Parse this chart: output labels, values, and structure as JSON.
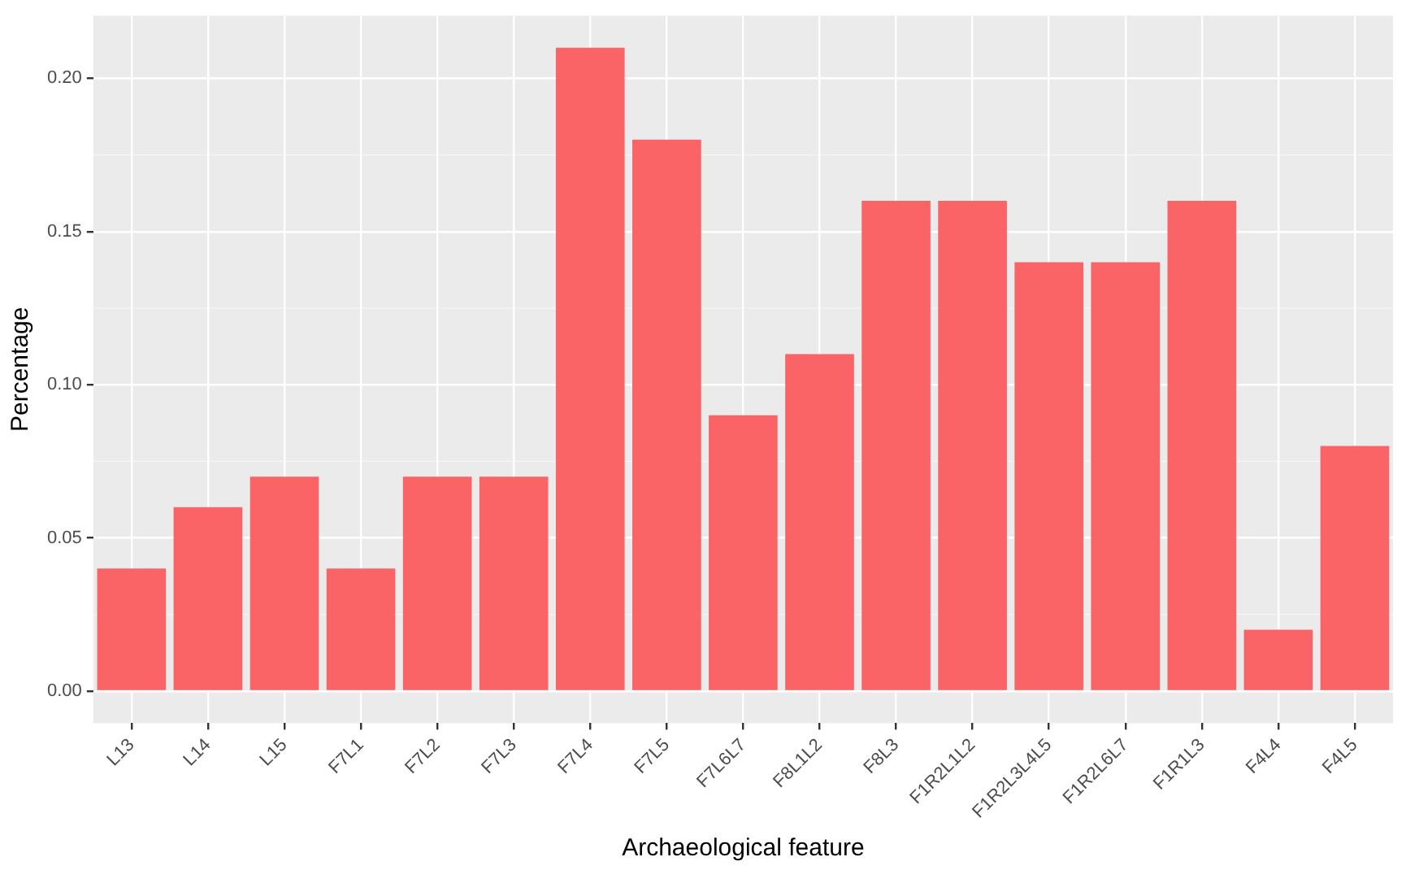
{
  "chart_data": {
    "type": "bar",
    "xlabel": "Archaeological feature",
    "ylabel": "Percentage",
    "categories": [
      "L13",
      "L14",
      "L15",
      "F7L1",
      "F7L2",
      "F7L3",
      "F7L4",
      "F7L5",
      "F7L6L7",
      "F8L1L2",
      "F8L3",
      "F1R2L1L2",
      "F1R2L3L4L5",
      "F1R2L6L7",
      "F1R1L3",
      "F4L4",
      "F4L5"
    ],
    "values": [
      0.04,
      0.06,
      0.07,
      0.04,
      0.07,
      0.07,
      0.21,
      0.18,
      0.09,
      0.11,
      0.16,
      0.16,
      0.14,
      0.14,
      0.16,
      0.02,
      0.08
    ],
    "color": "#fb6467",
    "ylim": [
      -0.0105,
      0.2205
    ],
    "yticks": [
      {
        "value": 0,
        "label": "0.00"
      },
      {
        "value": 0.05,
        "label": "0.05"
      },
      {
        "value": 0.1,
        "label": "0.10"
      },
      {
        "value": 0.15,
        "label": "0.15"
      },
      {
        "value": 0.2,
        "label": "0.20"
      }
    ],
    "grid": true,
    "legend": false
  }
}
